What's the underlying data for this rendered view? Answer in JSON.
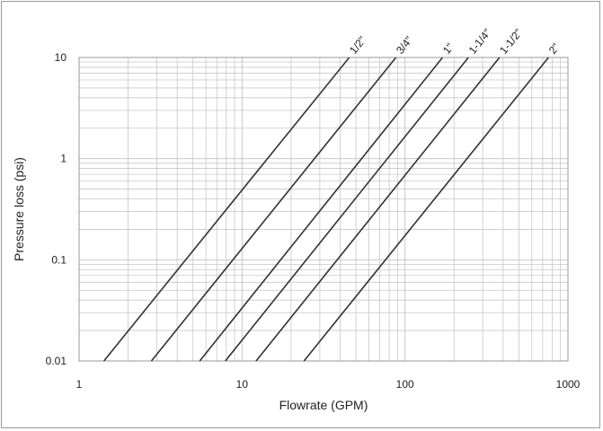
{
  "chart_data": {
    "type": "line",
    "title": "",
    "xlabel": "Flowrate (GPM)",
    "ylabel": "Pressure loss (psi)",
    "x_scale": "log",
    "y_scale": "log",
    "xlim": [
      1,
      1000
    ],
    "ylim": [
      0.01,
      10
    ],
    "x_ticks": [
      "1",
      "10",
      "100",
      "1000"
    ],
    "y_ticks": [
      "0.01",
      "0.1",
      "1",
      "10"
    ],
    "grid": true,
    "legend": "labels at line ends (top)",
    "line_color": "#333333",
    "grid_color": "#c8c8c8",
    "series": [
      {
        "name": "1/2\"",
        "x": [
          1.42,
          45.5
        ],
        "y": [
          0.01,
          10
        ]
      },
      {
        "name": "3/4\"",
        "x": [
          2.78,
          88
        ],
        "y": [
          0.01,
          10
        ]
      },
      {
        "name": "1\"",
        "x": [
          5.5,
          170
        ],
        "y": [
          0.01,
          10
        ]
      },
      {
        "name": "1-1/4\"",
        "x": [
          7.9,
          245
        ],
        "y": [
          0.01,
          10
        ]
      },
      {
        "name": "1-1/2\"",
        "x": [
          12.2,
          380
        ],
        "y": [
          0.01,
          10
        ]
      },
      {
        "name": "2\"",
        "x": [
          24,
          760
        ],
        "y": [
          0.01,
          10
        ]
      }
    ]
  }
}
